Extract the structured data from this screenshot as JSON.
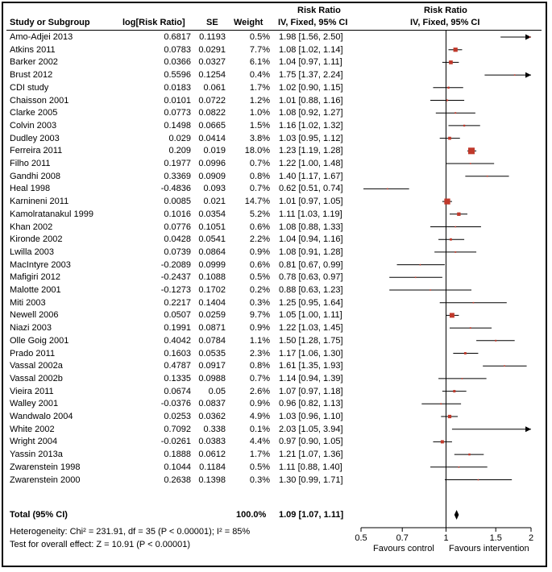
{
  "header": {
    "study_col": "Study or Subgroup",
    "log_col": "log[Risk Ratio]",
    "se_col": "SE",
    "weight_col": "Weight",
    "rr_col_title": "Risk Ratio",
    "rr_col_method": "IV, Fixed, 95% CI",
    "plot_title": "Risk Ratio",
    "plot_method": "IV, Fixed, 95% CI"
  },
  "studies": [
    {
      "name": "Amo-Adjei 2013",
      "log_rr": "0.6817",
      "se": "0.1193",
      "weight": "0.5%",
      "ci": "1.98 [1.56, 2.50]"
    },
    {
      "name": "Atkins 2011",
      "log_rr": "0.0783",
      "se": "0.0291",
      "weight": "7.7%",
      "ci": "1.08 [1.02, 1.14]"
    },
    {
      "name": "Barker 2002",
      "log_rr": "0.0366",
      "se": "0.0327",
      "weight": "6.1%",
      "ci": "1.04 [0.97, 1.11]"
    },
    {
      "name": "Brust 2012",
      "log_rr": "0.5596",
      "se": "0.1254",
      "weight": "0.4%",
      "ci": "1.75 [1.37, 2.24]"
    },
    {
      "name": "CDI study",
      "log_rr": "0.0183",
      "se": "0.061",
      "weight": "1.7%",
      "ci": "1.02 [0.90, 1.15]"
    },
    {
      "name": "Chaisson 2001",
      "log_rr": "0.0101",
      "se": "0.0722",
      "weight": "1.2%",
      "ci": "1.01 [0.88, 1.16]"
    },
    {
      "name": "Clarke 2005",
      "log_rr": "0.0773",
      "se": "0.0822",
      "weight": "1.0%",
      "ci": "1.08 [0.92, 1.27]"
    },
    {
      "name": "Colvin 2003",
      "log_rr": "0.1498",
      "se": "0.0665",
      "weight": "1.5%",
      "ci": "1.16 [1.02, 1.32]"
    },
    {
      "name": "Dudley 2003",
      "log_rr": "0.029",
      "se": "0.0414",
      "weight": "3.8%",
      "ci": "1.03 [0.95, 1.12]"
    },
    {
      "name": "Ferreira 2011",
      "log_rr": "0.209",
      "se": "0.019",
      "weight": "18.0%",
      "ci": "1.23 [1.19, 1.28]"
    },
    {
      "name": "Filho 2011",
      "log_rr": "0.1977",
      "se": "0.0996",
      "weight": "0.7%",
      "ci": "1.22 [1.00, 1.48]"
    },
    {
      "name": "Gandhi 2008",
      "log_rr": "0.3369",
      "se": "0.0909",
      "weight": "0.8%",
      "ci": "1.40 [1.17, 1.67]"
    },
    {
      "name": "Heal 1998",
      "log_rr": "-0.4836",
      "se": "0.093",
      "weight": "0.7%",
      "ci": "0.62 [0.51, 0.74]"
    },
    {
      "name": "Karnineni 2011",
      "log_rr": "0.0085",
      "se": "0.021",
      "weight": "14.7%",
      "ci": "1.01 [0.97, 1.05]"
    },
    {
      "name": "Kamolratanakul 1999",
      "log_rr": "0.1016",
      "se": "0.0354",
      "weight": "5.2%",
      "ci": "1.11 [1.03, 1.19]"
    },
    {
      "name": "Khan 2002",
      "log_rr": "0.0776",
      "se": "0.1051",
      "weight": "0.6%",
      "ci": "1.08 [0.88, 1.33]"
    },
    {
      "name": "Kironde 2002",
      "log_rr": "0.0428",
      "se": "0.0541",
      "weight": "2.2%",
      "ci": "1.04 [0.94, 1.16]"
    },
    {
      "name": "Lwilla 2003",
      "log_rr": "0.0739",
      "se": "0.0864",
      "weight": "0.9%",
      "ci": "1.08 [0.91, 1.28]"
    },
    {
      "name": "MacIntyre 2003",
      "log_rr": "-0.2089",
      "se": "0.0999",
      "weight": "0.6%",
      "ci": "0.81 [0.67, 0.99]"
    },
    {
      "name": "Mafigiri 2012",
      "log_rr": "-0.2437",
      "se": "0.1088",
      "weight": "0.5%",
      "ci": "0.78 [0.63, 0.97]"
    },
    {
      "name": "Malotte 2001",
      "log_rr": "-0.1273",
      "se": "0.1702",
      "weight": "0.2%",
      "ci": "0.88 [0.63, 1.23]"
    },
    {
      "name": "Miti 2003",
      "log_rr": "0.2217",
      "se": "0.1404",
      "weight": "0.3%",
      "ci": "1.25 [0.95, 1.64]"
    },
    {
      "name": "Newell 2006",
      "log_rr": "0.0507",
      "se": "0.0259",
      "weight": "9.7%",
      "ci": "1.05 [1.00, 1.11]"
    },
    {
      "name": "Niazi 2003",
      "log_rr": "0.1991",
      "se": "0.0871",
      "weight": "0.9%",
      "ci": "1.22 [1.03, 1.45]"
    },
    {
      "name": "Olle Goig 2001",
      "log_rr": "0.4042",
      "se": "0.0784",
      "weight": "1.1%",
      "ci": "1.50 [1.28, 1.75]"
    },
    {
      "name": "Prado 2011",
      "log_rr": "0.1603",
      "se": "0.0535",
      "weight": "2.3%",
      "ci": "1.17 [1.06, 1.30]"
    },
    {
      "name": "Vassal 2002a",
      "log_rr": "0.4787",
      "se": "0.0917",
      "weight": "0.8%",
      "ci": "1.61 [1.35, 1.93]"
    },
    {
      "name": "Vassal 2002b",
      "log_rr": "0.1335",
      "se": "0.0988",
      "weight": "0.7%",
      "ci": "1.14 [0.94, 1.39]"
    },
    {
      "name": "Vieira 2011",
      "log_rr": "0.0674",
      "se": "0.05",
      "weight": "2.6%",
      "ci": "1.07 [0.97, 1.18]"
    },
    {
      "name": "Walley 2001",
      "log_rr": "-0.0376",
      "se": "0.0837",
      "weight": "0.9%",
      "ci": "0.96 [0.82, 1.13]"
    },
    {
      "name": "Wandwalo 2004",
      "log_rr": "0.0253",
      "se": "0.0362",
      "weight": "4.9%",
      "ci": "1.03 [0.96, 1.10]"
    },
    {
      "name": "White 2002",
      "log_rr": "0.7092",
      "se": "0.338",
      "weight": "0.1%",
      "ci": "2.03 [1.05, 3.94]"
    },
    {
      "name": "Wright 2004",
      "log_rr": "-0.0261",
      "se": "0.0383",
      "weight": "4.4%",
      "ci": "0.97 [0.90, 1.05]"
    },
    {
      "name": "Yassin 2013a",
      "log_rr": "0.1888",
      "se": "0.0612",
      "weight": "1.7%",
      "ci": "1.21 [1.07, 1.36]"
    },
    {
      "name": "Zwarenstein 1998",
      "log_rr": "0.1044",
      "se": "0.1184",
      "weight": "0.5%",
      "ci": "1.11 [0.88, 1.40]"
    },
    {
      "name": "Zwarenstein 2000",
      "log_rr": "0.2638",
      "se": "0.1398",
      "weight": "0.3%",
      "ci": "1.30 [0.99, 1.71]"
    }
  ],
  "total": {
    "label": "Total (95% CI)",
    "weight": "100.0%",
    "ci": "1.09 [1.07, 1.11]",
    "heterogeneity": "Heterogeneity: Chi² = 231.91, df = 35 (P < 0.00001); I² = 85%",
    "overall_effect": "Test for overall effect: Z = 10.91 (P < 0.00001)"
  },
  "axis": {
    "favours_left": "Favours control",
    "favours_right": "Favours intervention"
  },
  "colors": {
    "marker": "#c0392b",
    "line": "#000000",
    "diamond": "#000000"
  },
  "chart_data": {
    "type": "scatter",
    "subtype": "forest-plot",
    "title": "Risk Ratio",
    "subtitle": "IV, Fixed, 95% CI",
    "xscale": "log",
    "xlim": [
      0.5,
      2
    ],
    "xticks": [
      0.5,
      0.7,
      1,
      1.5,
      2
    ],
    "xticklabels": [
      "0.5",
      "0.7",
      "1",
      "1.5",
      "2"
    ],
    "reference_line": 1,
    "series": [
      {
        "points": [
          {
            "rr": 1.98,
            "lo": 1.56,
            "hi": 2.5,
            "w": 0.5
          },
          {
            "rr": 1.08,
            "lo": 1.02,
            "hi": 1.14,
            "w": 7.7
          },
          {
            "rr": 1.04,
            "lo": 0.97,
            "hi": 1.11,
            "w": 6.1
          },
          {
            "rr": 1.75,
            "lo": 1.37,
            "hi": 2.24,
            "w": 0.4
          },
          {
            "rr": 1.02,
            "lo": 0.9,
            "hi": 1.15,
            "w": 1.7
          },
          {
            "rr": 1.01,
            "lo": 0.88,
            "hi": 1.16,
            "w": 1.2
          },
          {
            "rr": 1.08,
            "lo": 0.92,
            "hi": 1.27,
            "w": 1.0
          },
          {
            "rr": 1.16,
            "lo": 1.02,
            "hi": 1.32,
            "w": 1.5
          },
          {
            "rr": 1.03,
            "lo": 0.95,
            "hi": 1.12,
            "w": 3.8
          },
          {
            "rr": 1.23,
            "lo": 1.19,
            "hi": 1.28,
            "w": 18.0
          },
          {
            "rr": 1.22,
            "lo": 1.0,
            "hi": 1.48,
            "w": 0.7
          },
          {
            "rr": 1.4,
            "lo": 1.17,
            "hi": 1.67,
            "w": 0.8
          },
          {
            "rr": 0.62,
            "lo": 0.51,
            "hi": 0.74,
            "w": 0.7
          },
          {
            "rr": 1.01,
            "lo": 0.97,
            "hi": 1.05,
            "w": 14.7
          },
          {
            "rr": 1.11,
            "lo": 1.03,
            "hi": 1.19,
            "w": 5.2
          },
          {
            "rr": 1.08,
            "lo": 0.88,
            "hi": 1.33,
            "w": 0.6
          },
          {
            "rr": 1.04,
            "lo": 0.94,
            "hi": 1.16,
            "w": 2.2
          },
          {
            "rr": 1.08,
            "lo": 0.91,
            "hi": 1.28,
            "w": 0.9
          },
          {
            "rr": 0.81,
            "lo": 0.67,
            "hi": 0.99,
            "w": 0.6
          },
          {
            "rr": 0.78,
            "lo": 0.63,
            "hi": 0.97,
            "w": 0.5
          },
          {
            "rr": 0.88,
            "lo": 0.63,
            "hi": 1.23,
            "w": 0.2
          },
          {
            "rr": 1.25,
            "lo": 0.95,
            "hi": 1.64,
            "w": 0.3
          },
          {
            "rr": 1.05,
            "lo": 1.0,
            "hi": 1.11,
            "w": 9.7
          },
          {
            "rr": 1.22,
            "lo": 1.03,
            "hi": 1.45,
            "w": 0.9
          },
          {
            "rr": 1.5,
            "lo": 1.28,
            "hi": 1.75,
            "w": 1.1
          },
          {
            "rr": 1.17,
            "lo": 1.06,
            "hi": 1.3,
            "w": 2.3
          },
          {
            "rr": 1.61,
            "lo": 1.35,
            "hi": 1.93,
            "w": 0.8
          },
          {
            "rr": 1.14,
            "lo": 0.94,
            "hi": 1.39,
            "w": 0.7
          },
          {
            "rr": 1.07,
            "lo": 0.97,
            "hi": 1.18,
            "w": 2.6
          },
          {
            "rr": 0.96,
            "lo": 0.82,
            "hi": 1.13,
            "w": 0.9
          },
          {
            "rr": 1.03,
            "lo": 0.96,
            "hi": 1.1,
            "w": 4.9
          },
          {
            "rr": 2.03,
            "lo": 1.05,
            "hi": 3.94,
            "w": 0.1
          },
          {
            "rr": 0.97,
            "lo": 0.9,
            "hi": 1.05,
            "w": 4.4
          },
          {
            "rr": 1.21,
            "lo": 1.07,
            "hi": 1.36,
            "w": 1.7
          },
          {
            "rr": 1.11,
            "lo": 0.88,
            "hi": 1.4,
            "w": 0.5
          },
          {
            "rr": 1.3,
            "lo": 0.99,
            "hi": 1.71,
            "w": 0.3
          }
        ]
      }
    ],
    "pooled": {
      "rr": 1.09,
      "lo": 1.07,
      "hi": 1.11
    }
  }
}
